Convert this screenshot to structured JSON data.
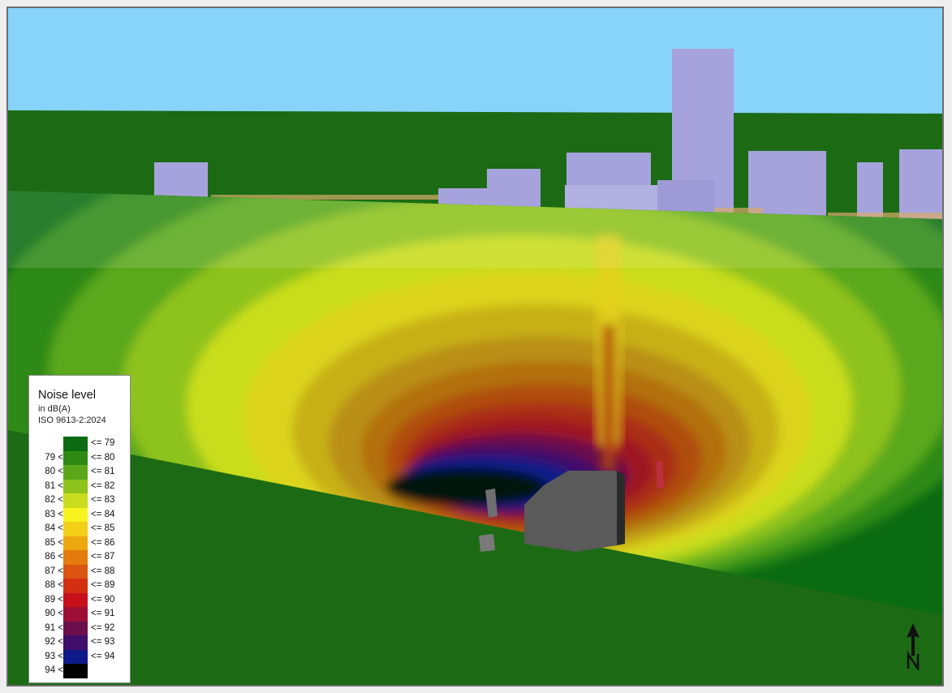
{
  "legend": {
    "title": "Noise level",
    "unit": "in dB(A)",
    "standard": "ISO 9613-2:2024",
    "classes": [
      {
        "lo": "",
        "hi": "<= 79",
        "color": "#0b6b12"
      },
      {
        "lo": "79 <",
        "hi": "<= 80",
        "color": "#2f8a14"
      },
      {
        "lo": "80 <",
        "hi": "<= 81",
        "color": "#5aa81a"
      },
      {
        "lo": "81 <",
        "hi": "<= 82",
        "color": "#8ec21d"
      },
      {
        "lo": "82 <",
        "hi": "<= 83",
        "color": "#c9dd1e"
      },
      {
        "lo": "83 <",
        "hi": "<= 84",
        "color": "#f6f31e"
      },
      {
        "lo": "84 <",
        "hi": "<= 85",
        "color": "#f3cf17"
      },
      {
        "lo": "85 <",
        "hi": "<= 86",
        "color": "#eda711"
      },
      {
        "lo": "86 <",
        "hi": "<= 87",
        "color": "#e47b0f"
      },
      {
        "lo": "87 <",
        "hi": "<= 88",
        "color": "#db5410"
      },
      {
        "lo": "88 <",
        "hi": "<= 89",
        "color": "#d33011"
      },
      {
        "lo": "89 <",
        "hi": "<= 90",
        "color": "#c7101a"
      },
      {
        "lo": "90 <",
        "hi": "<= 91",
        "color": "#9d0f36"
      },
      {
        "lo": "91 <",
        "hi": "<= 92",
        "color": "#6a0f4d"
      },
      {
        "lo": "92 <",
        "hi": "<= 93",
        "color": "#3f0f6a"
      },
      {
        "lo": "93 <",
        "hi": "<= 94",
        "color": "#0f1a8a"
      },
      {
        "lo": "94 <",
        "hi": "",
        "color": "#000000"
      }
    ]
  },
  "scene": {
    "sky_color": "#87d3fa",
    "ground_color": "#1c6b14",
    "building_color": "#a6a3dc",
    "north_arrow_icon": "north-arrow-icon"
  }
}
